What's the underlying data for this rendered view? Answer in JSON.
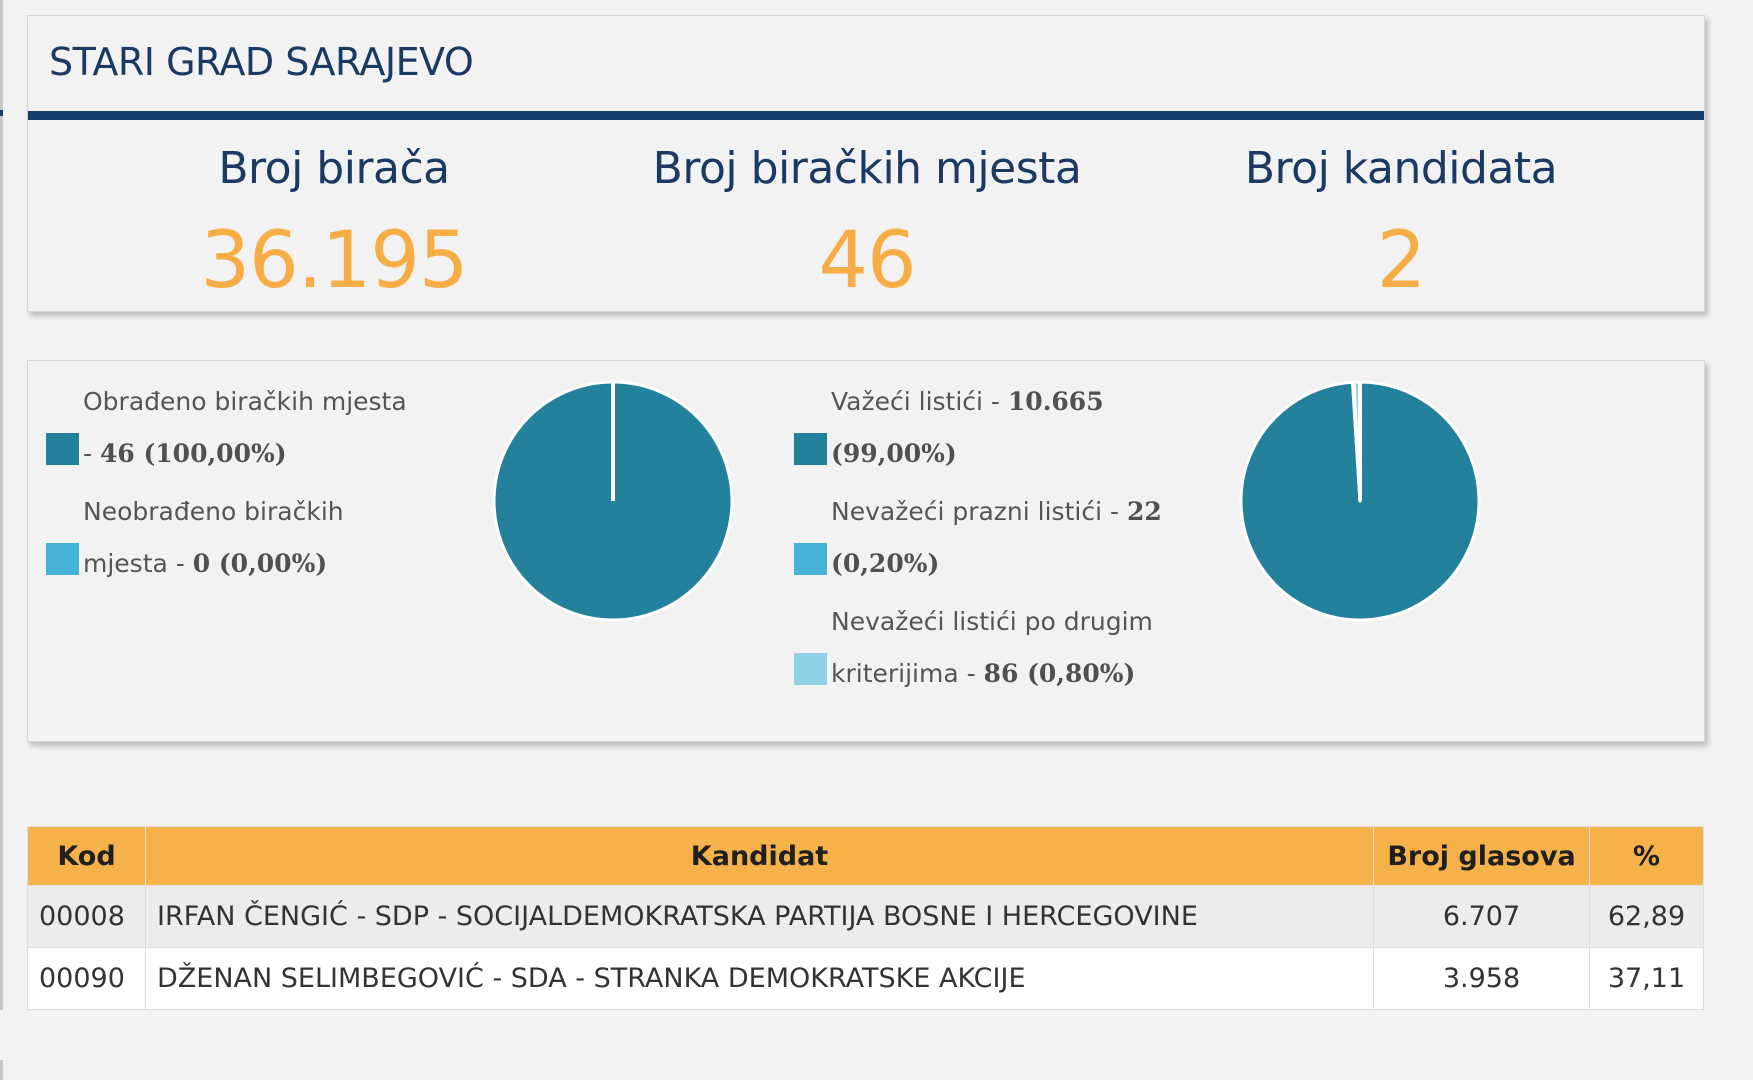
{
  "summary": {
    "title": "STARI GRAD SARAJEVO",
    "stats": [
      {
        "label": "Broj birača",
        "value": "36.195"
      },
      {
        "label": "Broj biračkih mjesta",
        "value": "46"
      },
      {
        "label": "Broj kandidata",
        "value": "2"
      }
    ]
  },
  "polling_stations": {
    "legend": [
      {
        "text": "Obrađeno biračkih mjesta - ",
        "value": "46 (100,00%)",
        "color": "#24819c"
      },
      {
        "text": "Neobrađeno biračkih mjesta - ",
        "value": "0 (0,00%)",
        "color": "#44b3d7"
      }
    ],
    "fractions": [
      1.0,
      0.0
    ]
  },
  "ballots": {
    "legend": [
      {
        "text": "Važeći listići - ",
        "value": "10.665 (99,00%)",
        "color": "#24819c"
      },
      {
        "text": "Nevažeći prazni listići - ",
        "value": "22 (0,20%)",
        "color": "#44b3d7"
      },
      {
        "text": "Nevažeći listići po drugim kriterijima - ",
        "value": "86 (0,80%)",
        "color": "#8fd1e6"
      }
    ],
    "fractions": [
      0.99,
      0.002,
      0.008
    ]
  },
  "results": {
    "headers": {
      "code": "Kod",
      "candidate": "Kandidat",
      "votes": "Broj glasova",
      "percent": "%"
    },
    "rows": [
      {
        "code": "00008",
        "candidate": "IRFAN ČENGIĆ - SDP - SOCIJALDEMOKRATSKA PARTIJA BOSNE I HERCEGOVINE",
        "votes": "6.707",
        "percent": "62,89"
      },
      {
        "code": "00090",
        "candidate": "DŽENAN SELIMBEGOVIĆ - SDA - STRANKA DEMOKRATSKE AKCIJE",
        "votes": "3.958",
        "percent": "37,11"
      }
    ]
  }
}
